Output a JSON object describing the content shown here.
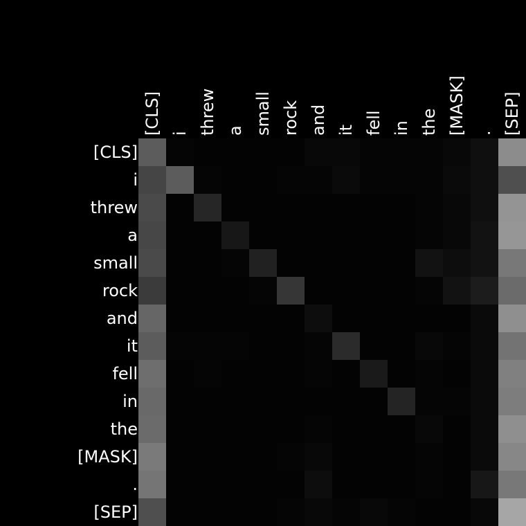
{
  "chart_data": {
    "type": "heatmap",
    "title": "",
    "xlabel": "",
    "ylabel": "",
    "colormap": "grayscale",
    "background": "#000000",
    "x_tokens": [
      "[CLS]",
      "i",
      "threw",
      "a",
      "small",
      "rock",
      "and",
      "it",
      "fell",
      "in",
      "the",
      "[MASK]",
      ".",
      "[SEP]"
    ],
    "y_tokens": [
      "[CLS]",
      "i",
      "threw",
      "a",
      "small",
      "rock",
      "and",
      "it",
      "fell",
      "in",
      "the",
      "[MASK]",
      ".",
      "[SEP]"
    ],
    "values": [
      [
        0.36,
        0.02,
        0.01,
        0.01,
        0.01,
        0.01,
        0.03,
        0.03,
        0.02,
        0.02,
        0.02,
        0.03,
        0.06,
        0.55
      ],
      [
        0.27,
        0.36,
        0.02,
        0.01,
        0.01,
        0.02,
        0.02,
        0.04,
        0.02,
        0.02,
        0.02,
        0.04,
        0.06,
        0.31
      ],
      [
        0.29,
        0.01,
        0.15,
        0.01,
        0.01,
        0.01,
        0.01,
        0.01,
        0.01,
        0.01,
        0.02,
        0.03,
        0.06,
        0.58
      ],
      [
        0.28,
        0.01,
        0.01,
        0.09,
        0.01,
        0.01,
        0.01,
        0.01,
        0.01,
        0.01,
        0.02,
        0.03,
        0.07,
        0.59
      ],
      [
        0.29,
        0.01,
        0.01,
        0.02,
        0.13,
        0.01,
        0.01,
        0.01,
        0.01,
        0.01,
        0.07,
        0.05,
        0.07,
        0.47
      ],
      [
        0.23,
        0.01,
        0.01,
        0.01,
        0.02,
        0.21,
        0.01,
        0.01,
        0.01,
        0.01,
        0.02,
        0.07,
        0.11,
        0.42
      ],
      [
        0.4,
        0.01,
        0.01,
        0.01,
        0.01,
        0.01,
        0.05,
        0.01,
        0.01,
        0.01,
        0.01,
        0.01,
        0.04,
        0.56
      ],
      [
        0.36,
        0.02,
        0.02,
        0.02,
        0.01,
        0.01,
        0.02,
        0.17,
        0.01,
        0.01,
        0.03,
        0.02,
        0.04,
        0.45
      ],
      [
        0.43,
        0.01,
        0.02,
        0.01,
        0.01,
        0.01,
        0.02,
        0.01,
        0.1,
        0.01,
        0.02,
        0.01,
        0.04,
        0.5
      ],
      [
        0.41,
        0.01,
        0.01,
        0.01,
        0.01,
        0.01,
        0.01,
        0.01,
        0.01,
        0.14,
        0.02,
        0.02,
        0.04,
        0.49
      ],
      [
        0.42,
        0.01,
        0.01,
        0.01,
        0.01,
        0.01,
        0.02,
        0.01,
        0.01,
        0.01,
        0.03,
        0.01,
        0.04,
        0.56
      ],
      [
        0.48,
        0.01,
        0.01,
        0.01,
        0.01,
        0.02,
        0.03,
        0.01,
        0.01,
        0.01,
        0.02,
        0.01,
        0.04,
        0.53
      ],
      [
        0.46,
        0.01,
        0.01,
        0.01,
        0.01,
        0.01,
        0.05,
        0.01,
        0.01,
        0.01,
        0.02,
        0.01,
        0.09,
        0.47
      ],
      [
        0.31,
        0.01,
        0.01,
        0.01,
        0.01,
        0.02,
        0.03,
        0.02,
        0.03,
        0.02,
        0.01,
        0.01,
        0.03,
        0.65
      ]
    ],
    "value_range": [
      0,
      1
    ],
    "grid": false
  }
}
